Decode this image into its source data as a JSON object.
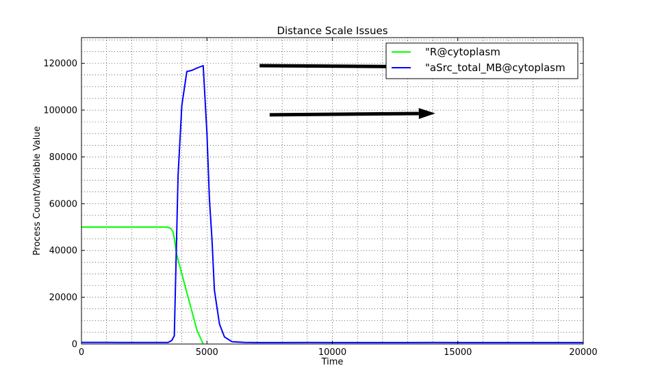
{
  "chart_data": {
    "type": "line",
    "title": "Distance Scale Issues",
    "xlabel": "Time",
    "ylabel": "Process Count/Variable Value",
    "xlim": [
      0,
      20000
    ],
    "ylim": [
      0,
      131000
    ],
    "xticks": [
      0,
      5000,
      10000,
      15000,
      20000
    ],
    "yticks": [
      0,
      20000,
      40000,
      60000,
      80000,
      100000,
      120000
    ],
    "grid": true,
    "legend_position": "top-right",
    "series": [
      {
        "name": "\"R@cytoplasm",
        "color": "#00ff00",
        "x": [
          0,
          500,
          1000,
          1500,
          2000,
          2500,
          3000,
          3400,
          3550,
          3650,
          3700,
          3800,
          4000,
          4200,
          4400,
          4600,
          4850
        ],
        "y": [
          50000,
          50000,
          50000,
          50000,
          50000,
          50000,
          50000,
          50000,
          49500,
          48000,
          45000,
          38000,
          30000,
          22000,
          14000,
          6000,
          0
        ]
      },
      {
        "name": "\"aSrc_total_MB@cytoplasm",
        "color": "#0000ff",
        "x": [
          0,
          500,
          1000,
          1500,
          2000,
          2500,
          3000,
          3450,
          3600,
          3700,
          3850,
          4000,
          4200,
          4400,
          4600,
          4850,
          5000,
          5100,
          5200,
          5300,
          5500,
          5700,
          6000,
          6500,
          7000,
          8000,
          9000,
          10000,
          11000,
          12000,
          13000,
          14000,
          15000,
          16000,
          17000,
          18000,
          19000,
          20000
        ],
        "y": [
          700,
          700,
          700,
          650,
          650,
          650,
          650,
          650,
          1500,
          3500,
          72000,
          102000,
          116500,
          117000,
          118000,
          119000,
          90000,
          62000,
          45000,
          23000,
          8500,
          3000,
          1000,
          700,
          600,
          600,
          650,
          600,
          600,
          600,
          600,
          650,
          600,
          600,
          600,
          600,
          600,
          600
        ]
      }
    ],
    "arrows": [
      {
        "x1": 7100,
        "y1": 119000,
        "x2": 14100,
        "y2": 118500,
        "head": false
      },
      {
        "x1": 7500,
        "y1": 98000,
        "x2": 14100,
        "y2": 98600,
        "head": true
      }
    ]
  }
}
